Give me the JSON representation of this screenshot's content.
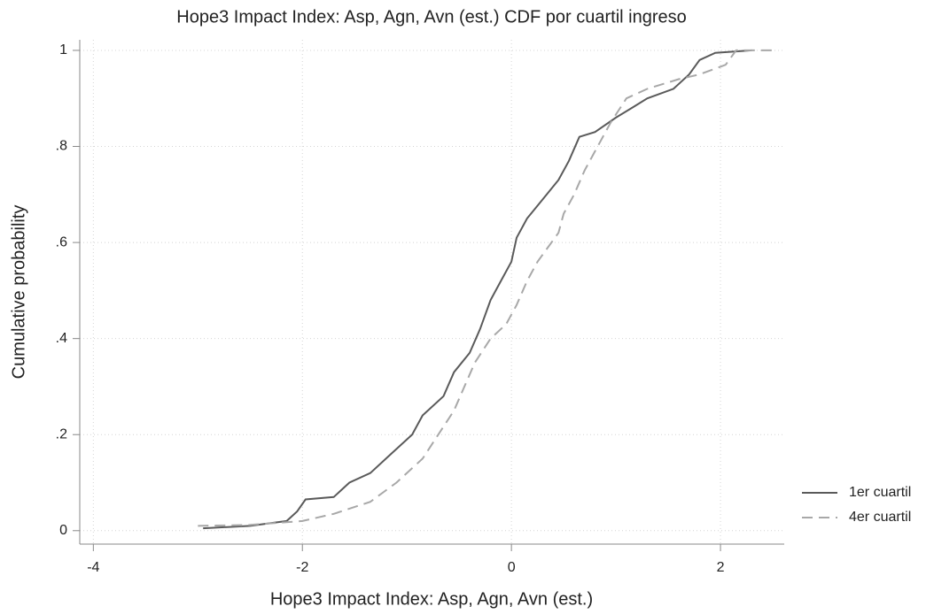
{
  "chart_data": {
    "type": "line",
    "title": "Hope3 Impact Index: Asp, Agn, Avn (est.)  CDF por cuartil ingreso",
    "x_label": "Hope3 Impact Index: Asp, Agn, Avn (est.)",
    "y_label": "Cumulative probability",
    "xlim": [
      -4.13,
      2.61
    ],
    "ylim": [
      -0.028,
      1.022
    ],
    "xticks": [
      -4,
      -2,
      0,
      2
    ],
    "yticks": [
      0,
      {
        "value": 0.2,
        "label": ".2"
      },
      {
        "value": 0.4,
        "label": ".4"
      },
      {
        "value": 0.6,
        "label": ".6"
      },
      {
        "value": 0.8,
        "label": ".8"
      },
      1
    ],
    "grid": true,
    "legend_position": "right",
    "series": [
      {
        "name": "1er cuartil",
        "color": "#5a5a5a",
        "dash": "solid",
        "x": [
          -2.95,
          -2.5,
          -2.15,
          -2.05,
          -1.97,
          -1.7,
          -1.55,
          -1.35,
          -1.15,
          -0.95,
          -0.85,
          -0.65,
          -0.55,
          -0.4,
          -0.3,
          -0.2,
          -0.1,
          0,
          0.05,
          0.15,
          0.3,
          0.45,
          0.55,
          0.65,
          0.8,
          1.0,
          1.15,
          1.3,
          1.55,
          1.7,
          1.8,
          1.95,
          2.3
        ],
        "values": [
          0.005,
          0.01,
          0.02,
          0.04,
          0.065,
          0.07,
          0.1,
          0.12,
          0.16,
          0.2,
          0.24,
          0.28,
          0.33,
          0.37,
          0.42,
          0.48,
          0.52,
          0.56,
          0.61,
          0.65,
          0.69,
          0.73,
          0.77,
          0.82,
          0.83,
          0.86,
          0.88,
          0.9,
          0.92,
          0.95,
          0.98,
          0.995,
          1
        ]
      },
      {
        "name": "4er cuartil",
        "color": "#a8a8a8",
        "dash": "dashed",
        "x": [
          -3.0,
          -2.5,
          -2.0,
          -1.7,
          -1.35,
          -1.1,
          -0.85,
          -0.7,
          -0.55,
          -0.45,
          -0.35,
          -0.2,
          -0.05,
          0.05,
          0.15,
          0.25,
          0.35,
          0.45,
          0.5,
          0.6,
          0.7,
          0.8,
          0.95,
          1.1,
          1.3,
          1.6,
          1.8,
          2.05,
          2.15,
          2.5
        ],
        "values": [
          0.01,
          0.012,
          0.02,
          0.035,
          0.06,
          0.1,
          0.15,
          0.2,
          0.25,
          0.3,
          0.35,
          0.4,
          0.43,
          0.47,
          0.52,
          0.56,
          0.59,
          0.62,
          0.66,
          0.7,
          0.75,
          0.79,
          0.85,
          0.9,
          0.92,
          0.94,
          0.95,
          0.97,
          1,
          1
        ]
      }
    ]
  }
}
